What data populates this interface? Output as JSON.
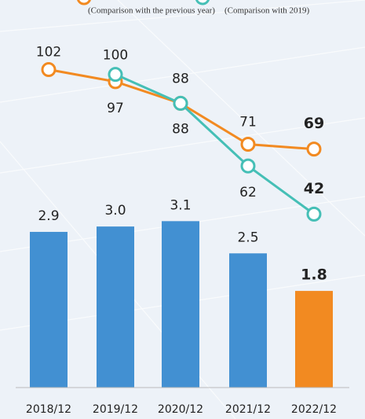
{
  "chart_data": {
    "type": "bar",
    "categories": [
      "2018/12",
      "2019/12",
      "2020/12",
      "2021/12",
      "2022/12"
    ],
    "values": [
      2.9,
      3.0,
      3.1,
      2.5,
      1.8
    ],
    "value_labels": [
      "2.9",
      "3.0",
      "3.1",
      "2.5",
      "1.8"
    ],
    "colors": [
      "#4290d2",
      "#4290d2",
      "#4290d2",
      "#4290d2",
      "#f28a21"
    ],
    "ylim": [
      0,
      7
    ],
    "y2lim": [
      -30,
      126
    ],
    "series": [
      {
        "name": "(Comparison with the previous year)",
        "color": "#f28a21",
        "axis": "y2",
        "values": [
          102,
          97,
          88,
          71,
          69
        ]
      },
      {
        "name": "(Comparison with 2019)",
        "color": "#45bfb6",
        "axis": "y2",
        "values": [
          null,
          100,
          88,
          62,
          42
        ]
      }
    ]
  }
}
